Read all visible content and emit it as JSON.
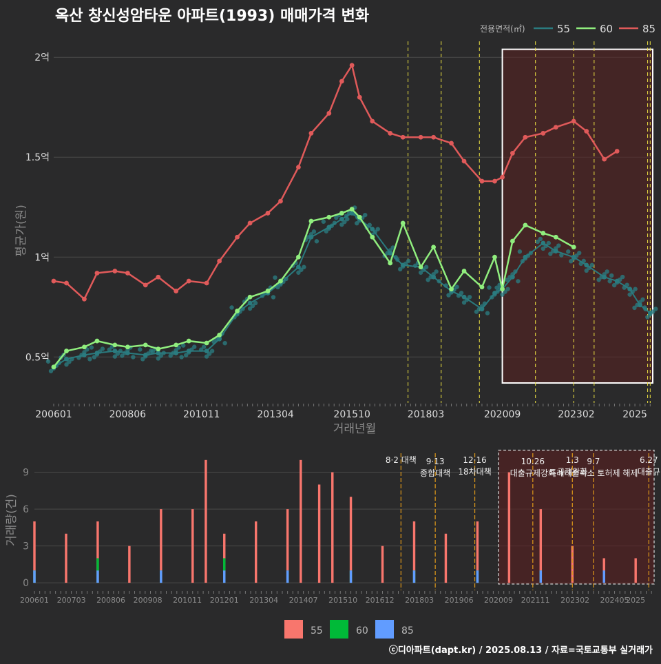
{
  "title": "옥산 창신성암타운 아파트(1993) 매매가격 변화",
  "colors": {
    "background": "#2a2a2b",
    "grid": "#4a4a4a",
    "s55": "#2a7b7f",
    "s60": "#90ee7e",
    "s85": "#e05a5a",
    "vol55": "#f8766d",
    "vol60": "#00ba38",
    "vol85": "#619cff",
    "policy": "#f0e442",
    "highlight": "#5a2020"
  },
  "legend": {
    "title": "전용면적(㎡)",
    "items": [
      "55",
      "60",
      "85"
    ]
  },
  "bottom_legend": {
    "items": [
      "55",
      "60",
      "85"
    ]
  },
  "credit": "ⓒ디아파트(dapt.kr) / 2025.08.13 / 자료=국토교통부 실거래가",
  "chart_data": [
    {
      "type": "line",
      "xlabel": "거래년월",
      "ylabel": "평균가(원)",
      "ytick_labels": [
        "0.5억",
        "1억",
        "1.5억",
        "2억"
      ],
      "ytick_values": [
        50000000,
        100000000,
        150000000,
        200000000
      ],
      "ylim": [
        27000000,
        208000000
      ],
      "xlim": [
        "2006-01",
        "2025-08"
      ],
      "xtick_labels": [
        "200601",
        "200806",
        "201011",
        "201304",
        "201510",
        "201803",
        "202009",
        "202302",
        "2025"
      ],
      "highlight_range": [
        "2020-09",
        "2025-08"
      ],
      "policy_dates": [
        "2017-08",
        "2018-09",
        "2019-12",
        "2021-10",
        "2023-01",
        "2023-09",
        "2025-06",
        "2025-07"
      ],
      "series": [
        {
          "name": "55",
          "x": [
            "2006-01",
            "2006-06",
            "2007-01",
            "2007-06",
            "2008-01",
            "2008-06",
            "2009-01",
            "2009-06",
            "2010-01",
            "2010-06",
            "2011-01",
            "2011-06",
            "2012-01",
            "2012-06",
            "2013-01",
            "2013-06",
            "2014-01",
            "2014-06",
            "2015-01",
            "2015-06",
            "2015-10",
            "2016-01",
            "2016-06",
            "2017-01",
            "2017-06",
            "2018-01",
            "2018-06",
            "2019-01",
            "2019-06",
            "2020-01",
            "2020-06",
            "2020-09",
            "2021-01",
            "2021-06",
            "2022-01",
            "2022-06",
            "2023-01",
            "2023-06",
            "2024-01",
            "2024-06",
            "2024-11",
            "2025-03",
            "2025-07"
          ],
          "values": [
            45000000,
            49000000,
            51000000,
            52000000,
            53000000,
            52000000,
            51000000,
            52000000,
            52000000,
            53000000,
            53000000,
            59000000,
            72000000,
            77000000,
            82000000,
            87000000,
            95000000,
            110000000,
            115000000,
            119000000,
            122000000,
            119000000,
            114000000,
            102000000,
            96000000,
            95000000,
            90000000,
            83000000,
            80000000,
            74000000,
            82000000,
            84000000,
            90000000,
            100000000,
            107000000,
            103000000,
            100000000,
            96000000,
            90000000,
            88000000,
            84000000,
            76000000,
            72000000
          ]
        },
        {
          "name": "60",
          "x": [
            "2006-01",
            "2006-06",
            "2007-01",
            "2007-06",
            "2008-01",
            "2008-06",
            "2009-01",
            "2009-06",
            "2010-01",
            "2010-06",
            "2011-01",
            "2011-06",
            "2012-01",
            "2012-06",
            "2013-01",
            "2013-06",
            "2014-01",
            "2014-06",
            "2015-01",
            "2015-06",
            "2015-10",
            "2016-01",
            "2016-06",
            "2017-01",
            "2017-06",
            "2018-01",
            "2018-06",
            "2019-01",
            "2019-06",
            "2020-01",
            "2020-06",
            "2020-09",
            "2021-01",
            "2021-06",
            "2022-01",
            "2022-06",
            "2023-01"
          ],
          "values": [
            45000000,
            53000000,
            55000000,
            58000000,
            56000000,
            55000000,
            56000000,
            54000000,
            56000000,
            58000000,
            57000000,
            61000000,
            73000000,
            80000000,
            83000000,
            88000000,
            100000000,
            118000000,
            120000000,
            122000000,
            124000000,
            120000000,
            110000000,
            97000000,
            117000000,
            95000000,
            105000000,
            84000000,
            93000000,
            85000000,
            100000000,
            84000000,
            108000000,
            116000000,
            112000000,
            110000000,
            105000000
          ]
        },
        {
          "name": "85",
          "x": [
            "2006-01",
            "2006-06",
            "2007-01",
            "2007-06",
            "2008-01",
            "2008-06",
            "2009-01",
            "2009-06",
            "2010-01",
            "2010-06",
            "2011-01",
            "2011-06",
            "2012-01",
            "2012-06",
            "2013-01",
            "2013-06",
            "2014-01",
            "2014-06",
            "2015-01",
            "2015-06",
            "2015-10",
            "2016-01",
            "2016-06",
            "2017-01",
            "2017-06",
            "2018-01",
            "2018-06",
            "2019-01",
            "2019-06",
            "2020-01",
            "2020-06",
            "2020-09",
            "2021-01",
            "2021-06",
            "2022-01",
            "2022-06",
            "2023-01",
            "2023-06",
            "2024-01",
            "2024-06"
          ],
          "values": [
            88000000,
            87000000,
            79000000,
            92000000,
            93000000,
            92000000,
            86000000,
            90000000,
            83000000,
            88000000,
            87000000,
            98000000,
            110000000,
            117000000,
            122000000,
            128000000,
            145000000,
            162000000,
            172000000,
            188000000,
            196000000,
            180000000,
            168000000,
            162000000,
            160000000,
            160000000,
            160000000,
            157000000,
            148000000,
            138000000,
            138000000,
            140000000,
            152000000,
            160000000,
            162000000,
            165000000,
            168000000,
            163000000,
            149000000,
            153000000
          ]
        }
      ]
    },
    {
      "type": "bar",
      "xlabel": "",
      "ylabel": "거래량(건)",
      "ytick_labels": [
        "0",
        "3",
        "6",
        "9"
      ],
      "ytick_values": [
        0,
        3,
        6,
        9
      ],
      "ylim": [
        -0.5,
        11
      ],
      "xtick_labels": [
        "200601",
        "200703",
        "200806",
        "200908",
        "201011",
        "201201",
        "201304",
        "201407",
        "201510",
        "201612",
        "201803",
        "201906",
        "202009",
        "202111",
        "202302",
        "202405",
        "2025"
      ],
      "annotations": [
        {
          "date": "2017-08",
          "lines": [
            "8·2 대책"
          ]
        },
        {
          "date": "2018-09",
          "lines": [
            "9·13",
            "종합대책"
          ]
        },
        {
          "date": "2019-12",
          "lines": [
            "12·16",
            "18차대책"
          ]
        },
        {
          "date": "2021-10",
          "lines": [
            "10.26",
            "대출규제강화"
          ]
        },
        {
          "date": "2023-01",
          "lines": [
            "1.3",
            "규제완화"
          ]
        },
        {
          "date": "2023-09",
          "lines": [
            "9.7",
            "특례대출축소 토허제 해제"
          ]
        },
        {
          "date": "2025-06",
          "lines": [
            "6.27",
            "대출규"
          ]
        }
      ],
      "series": [
        {
          "name": "55",
          "x": [
            "2006-01",
            "2007-01",
            "2008-01",
            "2009-01",
            "2010-01",
            "2011-01",
            "2011-06",
            "2012-01",
            "2013-01",
            "2014-01",
            "2014-06",
            "2015-01",
            "2015-06",
            "2016-01",
            "2017-01",
            "2018-01",
            "2019-01",
            "2020-01",
            "2021-01",
            "2022-01",
            "2023-01",
            "2024-01",
            "2025-01"
          ],
          "values": [
            5,
            4,
            5,
            3,
            6,
            6,
            10,
            4,
            5,
            6,
            10,
            8,
            9,
            7,
            3,
            5,
            4,
            5,
            9,
            6,
            3,
            2,
            2
          ]
        },
        {
          "name": "60",
          "x": [
            "2006-01",
            "2008-01",
            "2010-01",
            "2012-01",
            "2014-01",
            "2016-01",
            "2018-01",
            "2020-01",
            "2022-01"
          ],
          "values": [
            1,
            2,
            1,
            2,
            1,
            1,
            1,
            1,
            1
          ]
        },
        {
          "name": "85",
          "x": [
            "2006-01",
            "2008-01",
            "2010-01",
            "2012-01",
            "2014-01",
            "2016-01",
            "2018-01",
            "2020-01",
            "2022-01",
            "2024-01"
          ],
          "values": [
            1,
            1,
            1,
            1,
            1,
            1,
            1,
            1,
            1,
            1
          ]
        }
      ]
    }
  ]
}
